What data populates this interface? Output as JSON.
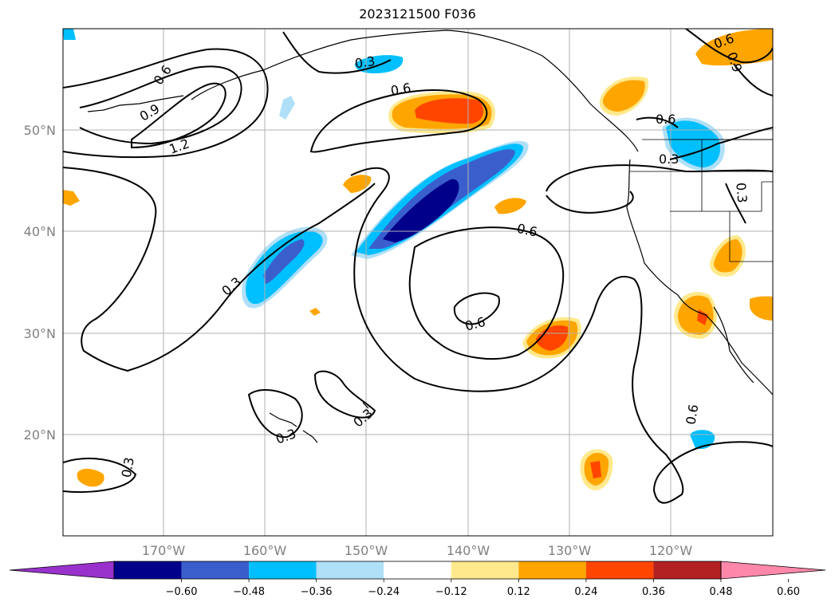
{
  "title": "2023121500 F036",
  "lat_labels": [
    "50°N",
    "40°N",
    "30°N",
    "20°N"
  ],
  "lon_labels": [
    "170°W",
    "160°W",
    "150°W",
    "140°W",
    "130°W",
    "120°W"
  ],
  "colorbar": {
    "labels": [
      "−0.60",
      "−0.48",
      "−0.36",
      "−0.24",
      "−0.12",
      "0.12",
      "0.24",
      "0.36",
      "0.48",
      "0.60"
    ],
    "colors": [
      "#9932cc",
      "#00008b",
      "#3a5fcd",
      "#00bfff",
      "#afe0f8",
      "#ffffff",
      "#ffe98c",
      "#ffa500",
      "#ff4500",
      "#b22222",
      "#ff88aa"
    ]
  },
  "contour_labels": [
    {
      "text": "0.6"
    },
    {
      "text": "0.9"
    },
    {
      "text": "1.2"
    },
    {
      "text": "0.3"
    },
    {
      "text": "0.6"
    },
    {
      "text": "0.3"
    },
    {
      "text": "0.6"
    },
    {
      "text": "0.3"
    },
    {
      "text": "0.6"
    },
    {
      "text": "0.3"
    },
    {
      "text": "0.6"
    },
    {
      "text": "0.6"
    },
    {
      "text": "0.3"
    },
    {
      "text": "0.3"
    },
    {
      "text": "0.3"
    },
    {
      "text": "0.6"
    },
    {
      "text": "0.9"
    }
  ],
  "chart_data": {
    "type": "heatmap",
    "title": "2023121500 F036",
    "xlabel": "",
    "ylabel": "",
    "lon_range": [
      -180,
      -110
    ],
    "lat_range": [
      10,
      60
    ],
    "levels": [
      -0.6,
      -0.48,
      -0.36,
      -0.24,
      -0.12,
      0.12,
      0.24,
      0.36,
      0.48,
      0.6
    ],
    "contour_levels": [
      0.3,
      0.6,
      0.9,
      1.2
    ],
    "grid": true
  }
}
